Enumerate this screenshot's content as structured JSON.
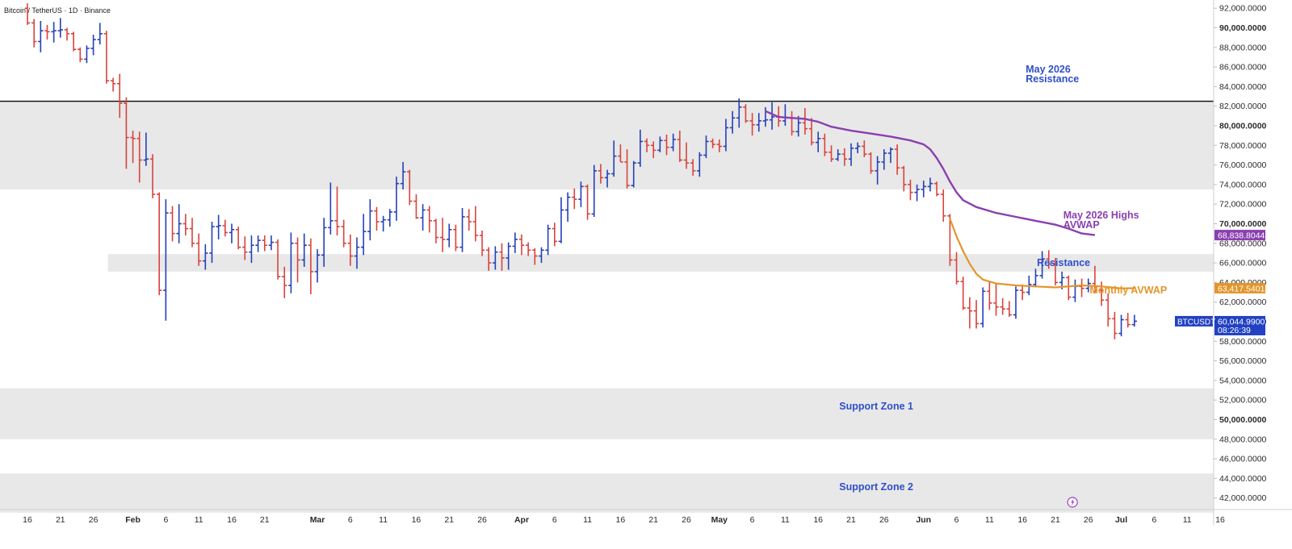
{
  "header": {
    "symbol_title": "Bitcoin / TetherUS · 1D · Binance"
  },
  "colors": {
    "up": "#2440b8",
    "down": "#d9433d",
    "monthly_avwap": "#e3962b",
    "highs_avwap": "#8a3fb0",
    "zone_fill": "#e8e8e8",
    "annotation": "#2f4fc9"
  },
  "chart_data": {
    "type": "ohlc",
    "title": "Bitcoin / TetherUS · 1D · Binance",
    "ylim": [
      40500,
      92800
    ],
    "y_ticks": [
      "92,000.0000",
      "90,000.0000",
      "88,000.0000",
      "86,000.0000",
      "84,000.0000",
      "82,000.0000",
      "80,000.0000",
      "78,000.0000",
      "76,000.0000",
      "74,000.0000",
      "72,000.0000",
      "70,000.0000",
      "68,000.0000",
      "66,000.0000",
      "64,000.0000",
      "62,000.0000",
      "60,000.0000",
      "58,000.0000",
      "56,000.0000",
      "54,000.0000",
      "52,000.0000",
      "50,000.0000",
      "48,000.0000",
      "46,000.0000",
      "44,000.0000",
      "42,000.0000"
    ],
    "x_ticks": [
      "16",
      "21",
      "26",
      "Feb",
      "6",
      "11",
      "16",
      "21",
      "Mar",
      "6",
      "11",
      "16",
      "21",
      "26",
      "Apr",
      "6",
      "11",
      "16",
      "21",
      "26",
      "May",
      "6",
      "11",
      "16",
      "21",
      "26",
      "Jun",
      "6",
      "11",
      "16",
      "21",
      "26",
      "Jul",
      "6",
      "11",
      "16"
    ],
    "x_start_date": "2026-01-16",
    "candles": [
      [
        92000,
        92500,
        90300,
        90500
      ],
      [
        90500,
        90900,
        88000,
        88600
      ],
      [
        88600,
        90700,
        87500,
        89700
      ],
      [
        89700,
        90300,
        88800,
        89600
      ],
      [
        89600,
        90600,
        88500,
        89700
      ],
      [
        89700,
        91000,
        89000,
        89800
      ],
      [
        89800,
        90000,
        88700,
        89400
      ],
      [
        89400,
        89600,
        87600,
        87800
      ],
      [
        87800,
        88000,
        86500,
        86800
      ],
      [
        86800,
        88200,
        86400,
        87900
      ],
      [
        87900,
        89300,
        87200,
        88800
      ],
      [
        88800,
        90500,
        88300,
        89400
      ],
      [
        89400,
        89700,
        84300,
        84600
      ],
      [
        84600,
        84900,
        83500,
        84300
      ],
      [
        84300,
        85300,
        80800,
        82300
      ],
      [
        82300,
        82900,
        75600,
        78800
      ],
      [
        78800,
        79500,
        76200,
        78700
      ],
      [
        78700,
        79400,
        74200,
        76500
      ],
      [
        76500,
        79300,
        75900,
        76600
      ],
      [
        76600,
        77100,
        72600,
        73000
      ],
      [
        73000,
        73200,
        62700,
        63200
      ],
      [
        63200,
        72500,
        60100,
        71100
      ],
      [
        71100,
        71800,
        68200,
        69000
      ],
      [
        69000,
        72000,
        68000,
        70000
      ],
      [
        70000,
        71000,
        68800,
        69500
      ],
      [
        69500,
        70600,
        67600,
        68000
      ],
      [
        68000,
        69000,
        65700,
        66200
      ],
      [
        66200,
        67900,
        65300,
        67000
      ],
      [
        67000,
        70200,
        66000,
        69700
      ],
      [
        69700,
        70900,
        68400,
        69800
      ],
      [
        69800,
        70400,
        68700,
        69100
      ],
      [
        69100,
        70000,
        68000,
        69400
      ],
      [
        69400,
        69700,
        67400,
        67600
      ],
      [
        67600,
        68700,
        66300,
        67100
      ],
      [
        67100,
        68800,
        66000,
        67800
      ],
      [
        67800,
        68800,
        67100,
        68300
      ],
      [
        68300,
        68800,
        67200,
        67800
      ],
      [
        67800,
        68800,
        67300,
        68100
      ],
      [
        68100,
        68400,
        64300,
        64600
      ],
      [
        64600,
        65600,
        62400,
        63700
      ],
      [
        63700,
        69100,
        62900,
        68000
      ],
      [
        68000,
        68600,
        64000,
        66300
      ],
      [
        66300,
        69000,
        65600,
        67800
      ],
      [
        67800,
        68500,
        62800,
        65100
      ],
      [
        65100,
        67400,
        64000,
        66800
      ],
      [
        66800,
        70600,
        65600,
        69600
      ],
      [
        69600,
        74200,
        68900,
        70300
      ],
      [
        70300,
        73800,
        68800,
        69700
      ],
      [
        69700,
        70400,
        67600,
        68000
      ],
      [
        68000,
        68900,
        65700,
        66700
      ],
      [
        66700,
        68600,
        65400,
        67600
      ],
      [
        67600,
        71000,
        66800,
        69200
      ],
      [
        69200,
        72500,
        68300,
        71300
      ],
      [
        71300,
        71700,
        69300,
        70200
      ],
      [
        70200,
        70800,
        69200,
        70400
      ],
      [
        70400,
        71500,
        69700,
        71200
      ],
      [
        71200,
        74800,
        70300,
        74100
      ],
      [
        74100,
        76300,
        73500,
        75300
      ],
      [
        75300,
        75500,
        71900,
        72300
      ],
      [
        72300,
        73000,
        70500,
        70600
      ],
      [
        70600,
        72000,
        69300,
        71400
      ],
      [
        71400,
        71800,
        69100,
        70300
      ],
      [
        70300,
        70500,
        68000,
        68600
      ],
      [
        68600,
        70600,
        67100,
        68400
      ],
      [
        68400,
        70000,
        67600,
        69400
      ],
      [
        69400,
        69900,
        67200,
        67600
      ],
      [
        67600,
        71600,
        67100,
        70700
      ],
      [
        70700,
        71500,
        69300,
        70200
      ],
      [
        70200,
        71800,
        68200,
        68800
      ],
      [
        68800,
        69300,
        66700,
        67300
      ],
      [
        67300,
        67600,
        65200,
        66000
      ],
      [
        66000,
        67700,
        65300,
        67100
      ],
      [
        67100,
        68000,
        65200,
        66500
      ],
      [
        66500,
        68100,
        65300,
        67700
      ],
      [
        67700,
        69100,
        67000,
        68400
      ],
      [
        68400,
        68900,
        66800,
        67800
      ],
      [
        67800,
        68100,
        66700,
        67300
      ],
      [
        67300,
        67500,
        65800,
        66700
      ],
      [
        66700,
        67600,
        66000,
        67300
      ],
      [
        67300,
        69900,
        66800,
        69500
      ],
      [
        69500,
        70100,
        67700,
        68200
      ],
      [
        68200,
        72700,
        68000,
        71400
      ],
      [
        71400,
        73200,
        70200,
        72700
      ],
      [
        72700,
        73600,
        71500,
        72500
      ],
      [
        72500,
        74300,
        71700,
        73800
      ],
      [
        73800,
        74000,
        70400,
        71000
      ],
      [
        71000,
        76000,
        70700,
        75400
      ],
      [
        75400,
        76100,
        74100,
        74700
      ],
      [
        74700,
        75500,
        73700,
        75100
      ],
      [
        75100,
        78500,
        74800,
        76900
      ],
      [
        76900,
        78100,
        76300,
        76300
      ],
      [
        76300,
        77600,
        73600,
        73900
      ],
      [
        73900,
        76400,
        73700,
        76200
      ],
      [
        76200,
        79600,
        75800,
        78400
      ],
      [
        78400,
        78700,
        77300,
        78000
      ],
      [
        78000,
        78400,
        76700,
        77500
      ],
      [
        77500,
        78900,
        77300,
        78500
      ],
      [
        78500,
        79100,
        77000,
        77800
      ],
      [
        77800,
        79200,
        77400,
        78600
      ],
      [
        78600,
        79500,
        76300,
        76500
      ],
      [
        76500,
        78300,
        75600,
        76200
      ],
      [
        76200,
        76600,
        74900,
        75400
      ],
      [
        75400,
        77300,
        74800,
        77000
      ],
      [
        77000,
        79000,
        76700,
        78400
      ],
      [
        78400,
        78700,
        77700,
        78100
      ],
      [
        78100,
        78600,
        77300,
        77900
      ],
      [
        77900,
        80700,
        77400,
        79800
      ],
      [
        79800,
        81500,
        79200,
        80800
      ],
      [
        80800,
        82800,
        79800,
        81900
      ],
      [
        81900,
        82200,
        80300,
        80500
      ],
      [
        80500,
        81300,
        79000,
        80100
      ],
      [
        80100,
        81300,
        79400,
        80500
      ],
      [
        80500,
        81900,
        79900,
        80600
      ],
      [
        80600,
        82400,
        79600,
        80900
      ],
      [
        80900,
        82000,
        79900,
        80500
      ],
      [
        80500,
        82200,
        80000,
        80800
      ],
      [
        80800,
        81500,
        79000,
        79400
      ],
      [
        79400,
        81000,
        78900,
        80300
      ],
      [
        80300,
        81800,
        79100,
        79700
      ],
      [
        79700,
        80800,
        78000,
        78300
      ],
      [
        78300,
        79400,
        77300,
        78700
      ],
      [
        78700,
        79200,
        76900,
        77300
      ],
      [
        77300,
        78000,
        76300,
        76600
      ],
      [
        76600,
        77600,
        76400,
        77100
      ],
      [
        77100,
        77700,
        75900,
        76600
      ],
      [
        76600,
        78200,
        75900,
        77700
      ],
      [
        77700,
        78300,
        77200,
        77900
      ],
      [
        77900,
        78500,
        76800,
        77100
      ],
      [
        77100,
        77300,
        75100,
        75400
      ],
      [
        75400,
        76900,
        74000,
        76300
      ],
      [
        76300,
        77600,
        75500,
        77200
      ],
      [
        77200,
        77800,
        76200,
        77600
      ],
      [
        77600,
        78100,
        75000,
        75700
      ],
      [
        75700,
        75900,
        73300,
        74000
      ],
      [
        74000,
        74500,
        72400,
        73200
      ],
      [
        73200,
        74000,
        72300,
        73500
      ],
      [
        73500,
        74400,
        72700,
        73800
      ],
      [
        73800,
        74700,
        73300,
        74100
      ],
      [
        74100,
        74300,
        72800,
        73000
      ],
      [
        73000,
        73500,
        70200,
        70800
      ],
      [
        70800,
        71000,
        65700,
        66300
      ],
      [
        66300,
        67100,
        63800,
        64100
      ],
      [
        64100,
        64600,
        61200,
        61400
      ],
      [
        61400,
        62500,
        59300,
        61100
      ],
      [
        61100,
        62200,
        59300,
        59800
      ],
      [
        59800,
        63500,
        59400,
        63100
      ],
      [
        63100,
        64100,
        61200,
        61900
      ],
      [
        61900,
        63900,
        60600,
        61500
      ],
      [
        61500,
        62400,
        60700,
        61300
      ],
      [
        61300,
        62100,
        60500,
        60700
      ],
      [
        60700,
        63600,
        60300,
        63200
      ],
      [
        63200,
        63800,
        62200,
        63000
      ],
      [
        63000,
        64700,
        62700,
        63800
      ],
      [
        63800,
        65400,
        63500,
        64700
      ],
      [
        64700,
        67200,
        64400,
        66400
      ],
      [
        66400,
        67300,
        65400,
        65900
      ],
      [
        65900,
        66500,
        63700,
        64000
      ],
      [
        64000,
        65100,
        63300,
        64500
      ],
      [
        64500,
        64700,
        62200,
        62500
      ],
      [
        62500,
        64300,
        62000,
        63600
      ],
      [
        63600,
        64400,
        62500,
        63400
      ],
      [
        63400,
        64400,
        63000,
        63900
      ],
      [
        63900,
        65700,
        62900,
        63200
      ],
      [
        63200,
        64100,
        61600,
        62200
      ],
      [
        62200,
        62900,
        59500,
        60300
      ],
      [
        60300,
        61000,
        58200,
        58800
      ],
      [
        58800,
        60700,
        58500,
        60200
      ],
      [
        60200,
        60900,
        59400,
        59700
      ],
      [
        59700,
        60700,
        59500,
        60045
      ]
    ],
    "monthly_avwap": [
      [
        140,
        70500
      ],
      [
        141,
        68700
      ],
      [
        142,
        67200
      ],
      [
        143,
        65900
      ],
      [
        144,
        64900
      ],
      [
        145,
        64300
      ],
      [
        147,
        63900
      ],
      [
        150,
        63700
      ],
      [
        153,
        63600
      ],
      [
        156,
        63500
      ],
      [
        160,
        63700
      ],
      [
        163,
        63600
      ],
      [
        166,
        63400
      ],
      [
        168,
        63418
      ]
    ],
    "highs_avwap": [
      [
        112,
        81500
      ],
      [
        114,
        80900
      ],
      [
        116,
        80800
      ],
      [
        118,
        80700
      ],
      [
        120,
        80400
      ],
      [
        122,
        79900
      ],
      [
        125,
        79500
      ],
      [
        128,
        79200
      ],
      [
        131,
        78900
      ],
      [
        134,
        78500
      ],
      [
        136,
        78100
      ],
      [
        137,
        77600
      ],
      [
        138,
        76700
      ],
      [
        139,
        75600
      ],
      [
        140,
        74300
      ],
      [
        141,
        73200
      ],
      [
        142,
        72400
      ],
      [
        144,
        71700
      ],
      [
        147,
        71100
      ],
      [
        150,
        70700
      ],
      [
        153,
        70300
      ],
      [
        156,
        69900
      ],
      [
        158,
        69500
      ],
      [
        160,
        69000
      ],
      [
        162,
        68839
      ]
    ],
    "zones": [
      {
        "from": 73500,
        "to": 82400
      },
      {
        "from": 65100,
        "to": 66900,
        "x_start": 10
      },
      {
        "from": 48000,
        "to": 53200
      },
      {
        "from": 40500,
        "to": 44500
      }
    ],
    "resistance_line": 82500,
    "labels": {
      "may_resistance_1": "May 2026",
      "may_resistance_2": "Resistance",
      "highs_avwap_1": "May 2026 Highs",
      "highs_avwap_2": "AVWAP",
      "resistance": "Resistance",
      "monthly_avwap": "Monthly AVWAP",
      "support_1": "Support Zone 1",
      "support_2": "Support Zone 2"
    },
    "price_tags": {
      "highs_avwap": "68,838.8044",
      "monthly_avwap": "63,417.5401",
      "ticker": "BTCUSDT",
      "last_price": "60,044.9900",
      "countdown": "08:26:39"
    },
    "last_value": 60045
  }
}
